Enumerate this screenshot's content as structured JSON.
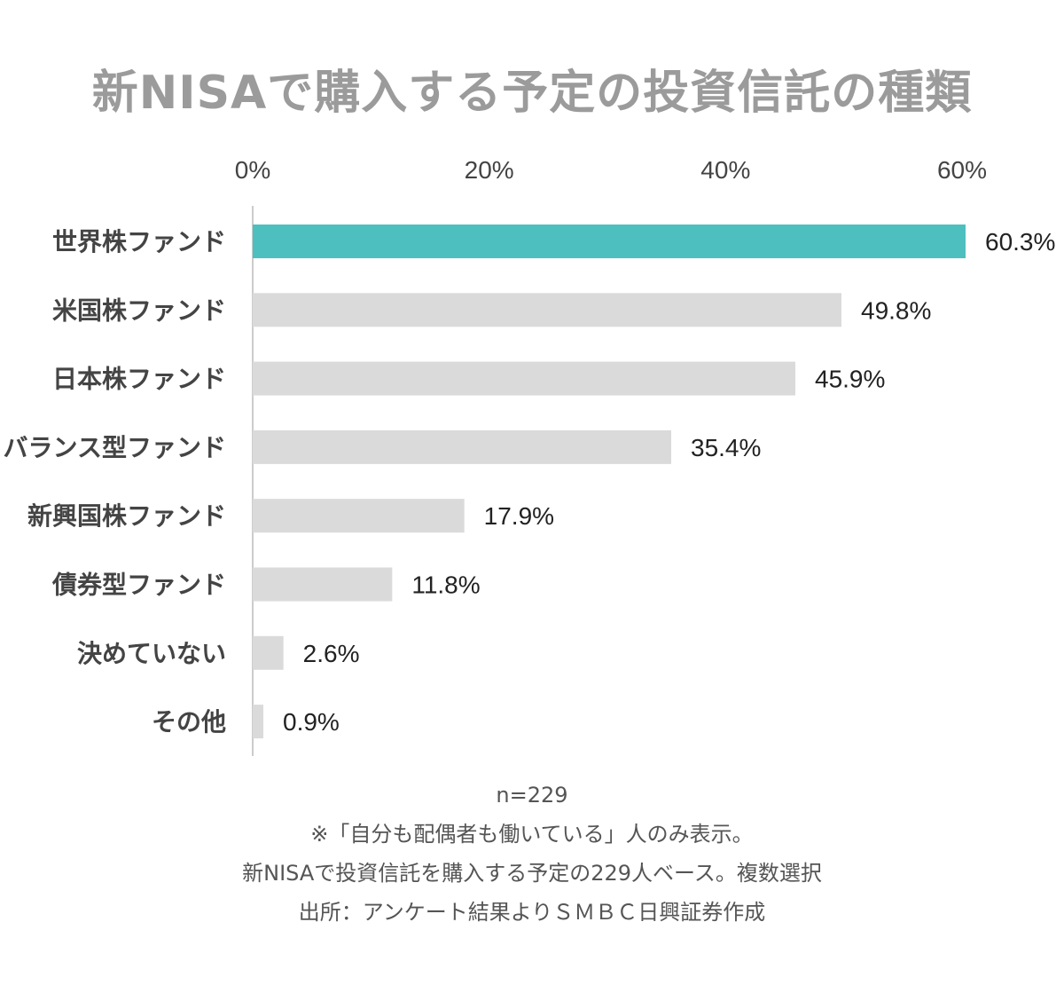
{
  "chart_data": {
    "type": "bar",
    "orientation": "horizontal",
    "title": "新NISAで購入する予定の投資信託の種類",
    "categories": [
      "世界株ファンド",
      "米国株ファンド",
      "日本株ファンド",
      "バランス型ファンド",
      "新興国株ファンド",
      "債券型ファンド",
      "決めていない",
      "その他"
    ],
    "values": [
      60.3,
      49.8,
      45.9,
      35.4,
      17.9,
      11.8,
      2.6,
      0.9
    ],
    "value_labels": [
      "60.3%",
      "49.8%",
      "45.9%",
      "35.4%",
      "17.9%",
      "11.8%",
      "2.6%",
      "0.9%"
    ],
    "x_ticks": [
      "0%",
      "20%",
      "40%",
      "60%"
    ],
    "x_tick_values": [
      0,
      20,
      40,
      60
    ],
    "xlim": [
      0,
      60
    ],
    "axis_position": "top",
    "grid": false,
    "highlight_color": "#4dbfbf",
    "bar_color": "#dadada"
  },
  "notes": {
    "sample": "n=229",
    "line1": "※「自分も配偶者も働いている」人のみ表示。",
    "line2": "新NISAで投資信託を購入する予定の229人ベース。複数選択",
    "source": "出所：アンケート結果よりＳＭＢＣ日興証券作成"
  }
}
